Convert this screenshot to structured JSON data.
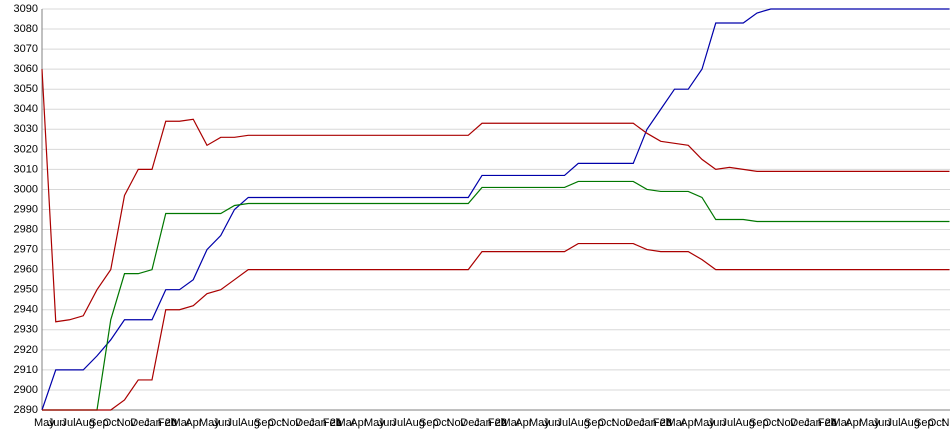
{
  "chart_data": {
    "type": "line",
    "categories": [
      "May",
      "Jun",
      "Jul",
      "Aug",
      "Sep",
      "Oct",
      "Nov",
      "Dec",
      "Jan 20",
      "Feb",
      "Mar",
      "Apr",
      "May",
      "Jun",
      "Jul",
      "Aug",
      "Sep",
      "Oct",
      "Nov",
      "Dec",
      "Jan 21",
      "Feb",
      "Mar",
      "Apr",
      "May",
      "Jun",
      "Jul",
      "Aug",
      "Sep",
      "Oct",
      "Nov",
      "Dec",
      "Jan 22",
      "Feb",
      "Mar",
      "Apr",
      "May",
      "Jun",
      "Jul",
      "Aug",
      "Sep",
      "Oct",
      "Nov",
      "Dec",
      "Jan 23",
      "Feb",
      "Mar",
      "Apr",
      "May",
      "Jun",
      "Jul",
      "Aug",
      "Sep",
      "Oct",
      "Nov",
      "Dec",
      "Jan 24",
      "Feb",
      "Mar",
      "Apr",
      "May",
      "Jun",
      "Jul",
      "Aug",
      "Sep",
      "Oct",
      "Nov"
    ],
    "series": [
      {
        "color": "#0000aa",
        "values": [
          2890,
          2910,
          2910,
          2910,
          2917,
          2925,
          2935,
          2935,
          2935,
          2950,
          2950,
          2955,
          2970,
          2977,
          2990,
          2996,
          2996,
          2996,
          2996,
          2996,
          2996,
          2996,
          2996,
          2996,
          2996,
          2996,
          2996,
          2996,
          2996,
          2996,
          2996,
          2996,
          3007,
          3007,
          3007,
          3007,
          3007,
          3007,
          3007,
          3013,
          3013,
          3013,
          3013,
          3013,
          3030,
          3040,
          3050,
          3050,
          3060,
          3083,
          3083,
          3083,
          3088,
          3090,
          3090,
          3090,
          3090,
          3090,
          3090,
          3090,
          3090,
          3090,
          3090,
          3090,
          3090,
          3090,
          3090
        ]
      },
      {
        "color": "#aa0000",
        "values": [
          3060,
          2934,
          2935,
          2937,
          2950,
          2960,
          2997,
          3010,
          3010,
          3034,
          3034,
          3035,
          3022,
          3026,
          3026,
          3027,
          3027,
          3027,
          3027,
          3027,
          3027,
          3027,
          3027,
          3027,
          3027,
          3027,
          3027,
          3027,
          3027,
          3027,
          3027,
          3027,
          3033,
          3033,
          3033,
          3033,
          3033,
          3033,
          3033,
          3033,
          3033,
          3033,
          3033,
          3033,
          3028,
          3024,
          3023,
          3022,
          3015,
          3010,
          3011,
          3010,
          3009,
          3009,
          3009,
          3009,
          3009,
          3009,
          3009,
          3009,
          3009,
          3009,
          3009,
          3009,
          3009,
          3009,
          3009
        ]
      },
      {
        "color": "#007700",
        "values": [
          2890,
          2890,
          2890,
          2890,
          2890,
          2935,
          2958,
          2958,
          2960,
          2988,
          2988,
          2988,
          2988,
          2988,
          2992,
          2993,
          2993,
          2993,
          2993,
          2993,
          2993,
          2993,
          2993,
          2993,
          2993,
          2993,
          2993,
          2993,
          2993,
          2993,
          2993,
          2993,
          3001,
          3001,
          3001,
          3001,
          3001,
          3001,
          3001,
          3004,
          3004,
          3004,
          3004,
          3004,
          3000,
          2999,
          2999,
          2999,
          2996,
          2985,
          2985,
          2985,
          2984,
          2984,
          2984,
          2984,
          2984,
          2984,
          2984,
          2984,
          2984,
          2984,
          2984,
          2984,
          2984,
          2984,
          2984
        ]
      },
      {
        "color": "#aa0000",
        "values": [
          2890,
          2890,
          2890,
          2890,
          2890,
          2890,
          2895,
          2905,
          2905,
          2940,
          2940,
          2942,
          2948,
          2950,
          2955,
          2960,
          2960,
          2960,
          2960,
          2960,
          2960,
          2960,
          2960,
          2960,
          2960,
          2960,
          2960,
          2960,
          2960,
          2960,
          2960,
          2960,
          2969,
          2969,
          2969,
          2969,
          2969,
          2969,
          2969,
          2973,
          2973,
          2973,
          2973,
          2973,
          2970,
          2969,
          2969,
          2969,
          2965,
          2960,
          2960,
          2960,
          2960,
          2960,
          2960,
          2960,
          2960,
          2960,
          2960,
          2960,
          2960,
          2960,
          2960,
          2960,
          2960,
          2960,
          2960
        ]
      }
    ],
    "ylim": [
      2890,
      3090
    ],
    "yticks": [
      2890,
      2900,
      2910,
      2920,
      2930,
      2940,
      2950,
      2960,
      2970,
      2980,
      2990,
      3000,
      3010,
      3020,
      3030,
      3040,
      3050,
      3060,
      3070,
      3080,
      3090
    ],
    "grid": true
  }
}
